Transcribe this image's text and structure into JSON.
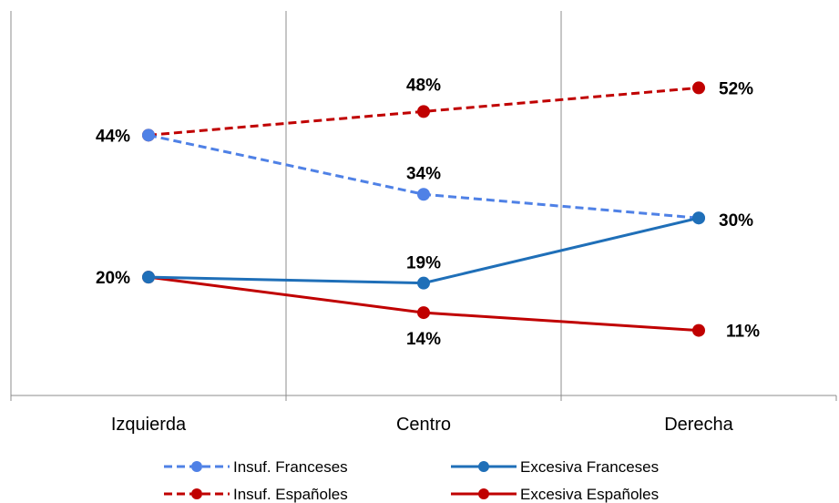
{
  "chart_data": {
    "type": "line",
    "categories": [
      "Izquierda",
      "Centro",
      "Derecha"
    ],
    "title": "",
    "xlabel": "",
    "ylabel": "",
    "ylim": [
      0,
      65
    ],
    "grid": "vertical",
    "legend_position": "bottom",
    "series": [
      {
        "name": "Insuf. Franceses",
        "values": [
          44,
          34,
          30
        ],
        "labels": [
          "44%",
          "34%",
          "30%"
        ],
        "color": "#4F81E6",
        "dash": true
      },
      {
        "name": "Excesiva Franceses",
        "values": [
          20,
          19,
          30
        ],
        "labels": [
          "20%",
          "19%",
          "30%"
        ],
        "color": "#1F6FB8",
        "dash": false
      },
      {
        "name": "Insuf. Españoles",
        "values": [
          44,
          48,
          52
        ],
        "labels": [
          "44%",
          "48%",
          "52%"
        ],
        "color": "#C00000",
        "dash": true
      },
      {
        "name": "Excesiva Españoles",
        "values": [
          20,
          14,
          11
        ],
        "labels": [
          "20%",
          "14%",
          "11%"
        ],
        "color": "#C00000",
        "dash": false
      }
    ]
  }
}
